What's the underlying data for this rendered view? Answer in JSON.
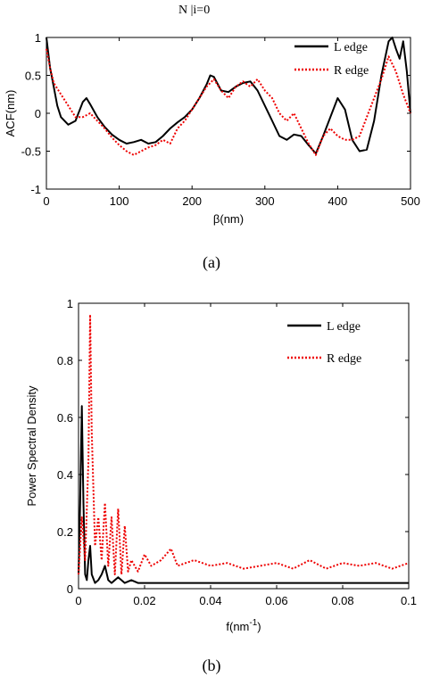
{
  "chart_data": [
    {
      "id": "a",
      "type": "line",
      "caption": "(a)",
      "xlabel": "β(nm)",
      "ylabel": "ACF(nm)",
      "xlim": [
        0,
        500
      ],
      "ylim": [
        -1,
        1
      ],
      "xticks": [
        "0",
        "100",
        "200",
        "300",
        "400",
        "500"
      ],
      "yticks": [
        "-1",
        "-0.5",
        "0",
        "0.5",
        "1"
      ],
      "legend_position": "top-right",
      "series": [
        {
          "name": "L edge",
          "color": "#000000",
          "style": "solid",
          "x": [
            0,
            5,
            10,
            15,
            20,
            30,
            40,
            50,
            55,
            60,
            70,
            80,
            90,
            100,
            110,
            120,
            130,
            140,
            150,
            160,
            170,
            180,
            190,
            200,
            210,
            220,
            225,
            230,
            240,
            250,
            260,
            270,
            280,
            290,
            300,
            310,
            320,
            330,
            340,
            350,
            360,
            370,
            380,
            390,
            400,
            410,
            420,
            430,
            440,
            450,
            460,
            470,
            475,
            480,
            485,
            490,
            495,
            500
          ],
          "y": [
            1.0,
            0.6,
            0.35,
            0.1,
            -0.05,
            -0.15,
            -0.1,
            0.15,
            0.2,
            0.12,
            -0.05,
            -0.18,
            -0.28,
            -0.35,
            -0.4,
            -0.38,
            -0.35,
            -0.4,
            -0.38,
            -0.3,
            -0.2,
            -0.12,
            -0.05,
            0.05,
            0.2,
            0.38,
            0.5,
            0.48,
            0.3,
            0.28,
            0.35,
            0.4,
            0.42,
            0.3,
            0.1,
            -0.1,
            -0.3,
            -0.35,
            -0.28,
            -0.3,
            -0.42,
            -0.53,
            -0.3,
            -0.05,
            0.2,
            0.05,
            -0.35,
            -0.5,
            -0.48,
            -0.1,
            0.5,
            0.95,
            1.0,
            0.85,
            0.72,
            0.95,
            0.55,
            0.0
          ]
        },
        {
          "name": "R edge",
          "color": "#ee0000",
          "style": "dotted",
          "x": [
            0,
            5,
            10,
            20,
            30,
            40,
            50,
            60,
            70,
            80,
            90,
            100,
            110,
            120,
            130,
            140,
            150,
            160,
            170,
            180,
            190,
            200,
            210,
            220,
            230,
            240,
            250,
            260,
            270,
            280,
            290,
            300,
            310,
            320,
            330,
            340,
            350,
            360,
            370,
            380,
            390,
            400,
            410,
            420,
            430,
            440,
            450,
            460,
            470,
            480,
            490,
            500
          ],
          "y": [
            0.85,
            0.6,
            0.4,
            0.25,
            0.1,
            -0.05,
            -0.05,
            0.0,
            -0.1,
            -0.2,
            -0.32,
            -0.42,
            -0.5,
            -0.55,
            -0.5,
            -0.45,
            -0.42,
            -0.35,
            -0.4,
            -0.2,
            -0.1,
            0.05,
            0.2,
            0.35,
            0.45,
            0.3,
            0.2,
            0.35,
            0.42,
            0.35,
            0.45,
            0.3,
            0.2,
            0.0,
            -0.1,
            0.0,
            -0.2,
            -0.4,
            -0.55,
            -0.3,
            -0.2,
            -0.3,
            -0.35,
            -0.35,
            -0.3,
            -0.05,
            0.2,
            0.45,
            0.75,
            0.55,
            0.25,
            0.0
          ]
        }
      ]
    },
    {
      "id": "b",
      "type": "line",
      "caption": "(b)",
      "xlabel": "f(nm",
      "xlabel_sup": "-1",
      "xlabel_close": ")",
      "ylabel": "Power Spectral Density",
      "xlim": [
        0,
        0.1
      ],
      "ylim": [
        0,
        1
      ],
      "xticks": [
        "0",
        "0.02",
        "0.04",
        "0.06",
        "0.08",
        "0.1"
      ],
      "yticks": [
        "0",
        "0.2",
        "0.4",
        "0.6",
        "0.8",
        "1"
      ],
      "legend_position": "top-right",
      "series": [
        {
          "name": "L edge",
          "color": "#000000",
          "style": "solid",
          "x": [
            0.0,
            0.0005,
            0.001,
            0.0015,
            0.002,
            0.0025,
            0.003,
            0.0035,
            0.004,
            0.005,
            0.006,
            0.007,
            0.008,
            0.009,
            0.01,
            0.012,
            0.014,
            0.016,
            0.018,
            0.02,
            0.03,
            0.04,
            0.05,
            0.06,
            0.07,
            0.08,
            0.09,
            0.1
          ],
          "y": [
            0.05,
            0.3,
            0.64,
            0.3,
            0.05,
            0.03,
            0.1,
            0.15,
            0.05,
            0.02,
            0.03,
            0.05,
            0.08,
            0.03,
            0.02,
            0.04,
            0.02,
            0.03,
            0.02,
            0.02,
            0.02,
            0.02,
            0.02,
            0.02,
            0.02,
            0.02,
            0.02,
            0.02
          ]
        },
        {
          "name": "R edge",
          "color": "#ee0000",
          "style": "dotted",
          "x": [
            0.0,
            0.001,
            0.002,
            0.003,
            0.0035,
            0.004,
            0.005,
            0.006,
            0.007,
            0.008,
            0.009,
            0.01,
            0.011,
            0.012,
            0.013,
            0.014,
            0.015,
            0.016,
            0.018,
            0.02,
            0.022,
            0.025,
            0.028,
            0.03,
            0.035,
            0.04,
            0.045,
            0.05,
            0.055,
            0.06,
            0.065,
            0.07,
            0.075,
            0.08,
            0.085,
            0.09,
            0.095,
            0.1
          ],
          "y": [
            0.05,
            0.25,
            0.1,
            0.45,
            0.96,
            0.55,
            0.15,
            0.25,
            0.1,
            0.3,
            0.08,
            0.25,
            0.05,
            0.28,
            0.05,
            0.22,
            0.06,
            0.1,
            0.06,
            0.12,
            0.08,
            0.1,
            0.14,
            0.08,
            0.1,
            0.08,
            0.09,
            0.07,
            0.08,
            0.09,
            0.07,
            0.1,
            0.07,
            0.09,
            0.08,
            0.09,
            0.07,
            0.09
          ]
        }
      ]
    }
  ],
  "header_fragment": "N  |i=0"
}
